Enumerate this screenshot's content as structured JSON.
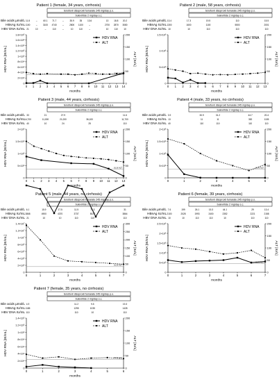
{
  "figure": {
    "hdv_label": "HDV RNA",
    "alt_label": "ALT",
    "x_label": "months",
    "y_left_label": "HDV RNA [IE/mL]",
    "y_right_label": "ALT [IU/L]",
    "uln_label": "ULN ALT",
    "bar_tdf": "tenofovir disoproxil fumarate 245 mg/day p.o.",
    "bar_bulev": "bulevirtide 2 mg/day s.c.",
    "lab_labels": [
      "Bile acids µmol/L",
      "HBsAg IU/mL",
      "HBV DNA IU/mL"
    ]
  },
  "chart_data": [
    {
      "type": "line",
      "title": "Patient 1 (female, 34 years, cirrhosis)",
      "xlim": [
        0,
        14
      ],
      "x_ticks": [
        0,
        1,
        2,
        3,
        4,
        5,
        6,
        7,
        8,
        9,
        10,
        11,
        12,
        13,
        14
      ],
      "y_left_ticks": [
        "0",
        "2×10⁴",
        "4×10⁴",
        "6×10⁴",
        "8×10⁴",
        "1×10⁵",
        "1.2×10⁵",
        "1.4×10⁵",
        "1.6×10⁵",
        "1.8×10⁵"
      ],
      "y_right_lim": [
        0,
        200
      ],
      "y_right_ticks": [
        "0",
        "50",
        "100",
        "150",
        "200"
      ],
      "uln": 35,
      "hdv": {
        "x": [
          0,
          1,
          2,
          3,
          9,
          14
        ],
        "y": [
          0.05,
          0.07,
          0.5,
          0.02,
          0.01,
          1.9
        ]
      },
      "alt": {
        "x": [
          0,
          1,
          2,
          3,
          5,
          6,
          7,
          8,
          9,
          10,
          11,
          12,
          13,
          14
        ],
        "y": [
          45,
          40,
          38,
          40,
          38,
          38,
          35,
          38,
          42,
          40,
          38,
          38,
          40,
          40
        ]
      },
      "lab_rows": [
        [
          "11.8",
          "–",
          "60.1",
          "71.7",
          "–",
          "35.9",
          "35",
          "13.6",
          "",
          "13",
          "18.8",
          "20.2"
        ],
        [
          "1100",
          "–",
          "3100",
          "4740",
          "–",
          "2800",
          "1100",
          "–",
          "",
          "2700",
          "2870",
          "3080"
        ],
        [
          "21",
          "10",
          "–",
          "110",
          "–",
          "10",
          "110",
          "–",
          "",
          "10",
          "110",
          "10"
        ]
      ]
    },
    {
      "type": "line",
      "title": "Patient 2 (male, 58 years, cirrhosis)",
      "xlim": [
        0,
        13
      ],
      "x_ticks": [
        0,
        1,
        2,
        3,
        4,
        5,
        6,
        7,
        8,
        9,
        10,
        11,
        12,
        13
      ],
      "y_left_ticks": [
        "0",
        "5×10⁵",
        "1×10⁶",
        "1.5×10⁶"
      ],
      "y_right_lim": [
        0,
        200
      ],
      "y_right_ticks": [
        "0",
        "50",
        "100",
        "150",
        "200"
      ],
      "uln": null,
      "hdv": {
        "x": [
          0,
          1,
          2,
          3,
          4,
          5
        ],
        "y": [
          0.35,
          0.3,
          0.05,
          0.22,
          0.02,
          0.02
        ]
      },
      "alt": {
        "x": [
          0,
          1,
          2,
          3,
          4,
          5,
          6,
          7,
          8,
          9,
          10,
          11,
          12,
          13
        ],
        "y": [
          60,
          55,
          50,
          40,
          42,
          38,
          35,
          36,
          35,
          37,
          38,
          40,
          42,
          45
        ]
      },
      "lab_rows": [
        [
          "13.4",
          "",
          "17.3",
          "",
          "19.5",
          "",
          "",
          "110",
          "",
          "",
          "15.5"
        ],
        [
          "1300",
          "",
          "1600",
          "",
          "1100",
          "",
          "",
          "5500",
          "",
          "",
          "2001"
        ],
        [
          "10",
          "",
          "10",
          "",
          "110",
          "",
          "",
          "110",
          "",
          "",
          "110"
        ]
      ]
    },
    {
      "type": "line",
      "title": "Patient 3 (male, 44 years, cirrhosis)",
      "xlim": [
        0,
        13
      ],
      "x_ticks": [
        0,
        1,
        2,
        3,
        4,
        5,
        6,
        7,
        8,
        9,
        10,
        11,
        12,
        13
      ],
      "y_left_ticks": [
        "0",
        "5×10⁵",
        "1×10⁶",
        "1.5×10⁶",
        "2×10⁶"
      ],
      "y_right_lim": [
        0,
        200
      ],
      "y_right_ticks": [
        "0",
        "50",
        "100",
        "150",
        "200"
      ],
      "uln": 35,
      "hdv": {
        "x": [
          0,
          2,
          6,
          9,
          11,
          13
        ],
        "y": [
          1.75,
          1.45,
          1.2,
          1.15,
          0.75,
          0.15
        ]
      },
      "alt": {
        "x": [
          0,
          1,
          2,
          3,
          4,
          5,
          6,
          7,
          8,
          9,
          10,
          11,
          12,
          13
        ],
        "y": [
          150,
          130,
          120,
          110,
          100,
          92,
          88,
          85,
          82,
          80,
          78,
          75,
          70,
          65
        ]
      },
      "lab_rows": [
        [
          "33",
          "",
          "21",
          "",
          "27.9",
          "",
          "",
          "",
          "",
          "",
          "",
          "11.6"
        ],
        [
          "14,700",
          "",
          "11,000",
          "",
          "21,000",
          "",
          "",
          "36,100",
          "",
          "",
          "",
          "11,700"
        ],
        [
          "40",
          "",
          "10",
          "",
          "24",
          "",
          "",
          "25",
          "",
          "",
          "",
          "110"
        ]
      ]
    },
    {
      "type": "line",
      "title": "Patient 4 (male, 33 years, no cirrhosis)",
      "xlim": [
        0,
        6
      ],
      "x_ticks": [
        0,
        1,
        2,
        3,
        4,
        5,
        6
      ],
      "y_left_ticks": [
        "0",
        "5×10⁵",
        "1×10⁶",
        "1.5×10⁶",
        "2×10⁶"
      ],
      "y_right_lim": [
        0,
        200
      ],
      "y_right_ticks": [
        "0",
        "50",
        "100",
        "150",
        "200"
      ],
      "uln": 35,
      "hdv": {
        "x": [
          0,
          1,
          2,
          3,
          4,
          5,
          6
        ],
        "y": [
          1.9,
          0.3,
          0.01,
          0,
          0,
          0,
          0
        ]
      },
      "alt": {
        "x": [
          0,
          1,
          2,
          3,
          4,
          5,
          6
        ],
        "y": [
          160,
          140,
          100,
          70,
          50,
          30,
          55
        ]
      },
      "lab_rows": [
        [
          "3.9",
          "",
          "30.9",
          "31.2",
          "",
          "44.7",
          "20.4"
        ],
        [
          "13",
          "",
          "11",
          "11",
          "",
          "352",
          "1105"
        ],
        [
          "40",
          "",
          "110",
          "110",
          "",
          "110",
          "110"
        ]
      ]
    },
    {
      "type": "line",
      "title": "Patient 5 (male, 44 years, no cirrhosis)",
      "xlim": [
        0,
        7
      ],
      "x_ticks": [
        0,
        1,
        2,
        3,
        4,
        5,
        6,
        7
      ],
      "y_left_ticks": [
        "0",
        "2×10⁶",
        "4×10⁶",
        "6×10⁶",
        "8×10⁶",
        "1×10⁷",
        "1.2×10⁷",
        "1.4×10⁷"
      ],
      "y_right_lim": [
        0,
        300
      ],
      "y_right_ticks": [
        "0",
        "50",
        "100",
        "150",
        "200",
        "250",
        "300"
      ],
      "uln": 35,
      "hdv": {
        "x": [
          0,
          1,
          2,
          3,
          4,
          5,
          6,
          7
        ],
        "y": [
          12.5,
          12.0,
          8.5,
          12.5,
          12.0,
          8.0,
          11.5,
          12.5
        ]
      },
      "alt": {
        "x": [
          0,
          1,
          2,
          3,
          4,
          5,
          6,
          7
        ],
        "y": [
          290,
          200,
          100,
          70,
          65,
          60,
          55,
          50
        ]
      },
      "lab_rows": [
        [
          "6.1",
          "15.9",
          "17.5",
          "11.5",
          "71.3",
          "",
          "31"
        ],
        [
          "3868",
          "4900",
          "4370",
          "3737",
          "5027",
          "",
          "3864"
        ],
        [
          "21",
          "10",
          "10",
          "110",
          "110",
          "",
          "110"
        ]
      ]
    },
    {
      "type": "line",
      "title": "Patient 6 (female, 39 years, cirrhosis)",
      "xlim": [
        0,
        7
      ],
      "x_ticks": [
        0,
        1,
        2,
        3,
        4,
        5,
        6,
        7
      ],
      "y_left_ticks": [
        "0",
        "5×10⁵",
        "1×10⁶",
        "1.5×10⁶",
        "2×10⁶",
        "2.5×10⁶"
      ],
      "y_right_lim": [
        0,
        200
      ],
      "y_right_ticks": [
        "0",
        "50",
        "100",
        "150",
        "200"
      ],
      "uln": 35,
      "hdv": {
        "x": [
          0,
          1,
          2,
          3,
          4,
          5,
          6,
          7
        ],
        "y": [
          1.25,
          1.05,
          1.15,
          1.2,
          1.25,
          1.5,
          1.0,
          1.1
        ]
      },
      "alt": {
        "x": [
          0,
          1,
          2,
          3,
          4,
          5,
          6,
          7
        ],
        "y": [
          110,
          100,
          95,
          85,
          75,
          80,
          90,
          60
        ]
      },
      "lab_rows": [
        [
          "7.6",
          "199",
          "26.1",
          "15.3",
          "44.1",
          "",
          "29",
          "13.4"
        ],
        [
          "2100",
          "2028",
          "1993",
          "2400",
          "2352",
          "",
          "2221",
          "2158"
        ],
        [
          "10",
          "10",
          "110",
          "110",
          "10",
          "",
          "110",
          "110"
        ]
      ]
    },
    {
      "type": "line",
      "title": "Patient 7 (female, 35 years, no cirrhosis)",
      "xlim": [
        0,
        6
      ],
      "x_ticks": [
        0,
        1,
        2,
        3,
        4,
        5,
        6
      ],
      "y_left_ticks": [
        "0",
        "2×10⁴",
        "4×10⁴",
        "6×10⁴",
        "8×10⁴",
        "1×10⁵",
        "1.2×10⁵",
        "1.4×10⁵"
      ],
      "y_right_lim": [
        0,
        200
      ],
      "y_right_ticks": [
        "0",
        "50",
        "100",
        "150",
        "200"
      ],
      "uln": 35,
      "hdv": {
        "x": [
          0,
          1,
          2,
          3,
          4
        ],
        "y": [
          0.2,
          0.45,
          0.2,
          0.1,
          0.01
        ]
      },
      "alt": {
        "x": [
          0,
          1,
          2,
          3,
          4,
          5,
          6
        ],
        "y": [
          55,
          40,
          45,
          35,
          40,
          42,
          38
        ]
      },
      "lab_rows": [
        [
          "4.9",
          "",
          "",
          "11.2",
          "9.5",
          "",
          "19.3"
        ],
        [
          "1185",
          "",
          "",
          "1295",
          "1035",
          "",
          "1428"
        ],
        [
          "110",
          "",
          "",
          "110",
          "10",
          "",
          "110"
        ]
      ]
    }
  ]
}
